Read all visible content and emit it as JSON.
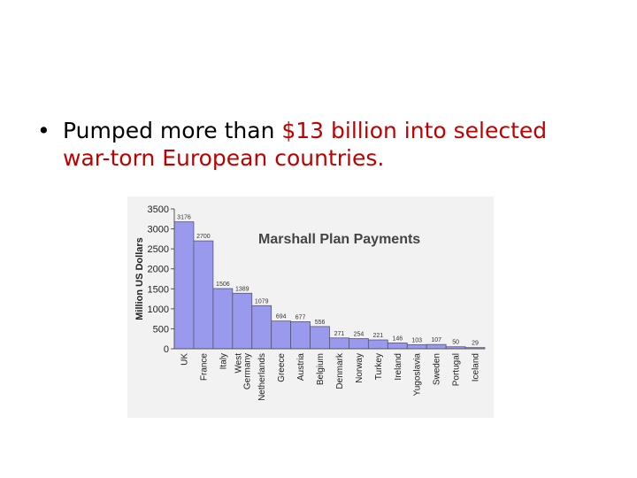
{
  "slide": {
    "bullet": "•",
    "text_before": "Pumped more than ",
    "text_highlight": "$13 billion into selected",
    "text_after": "war-torn European countries.",
    "highlight_color": "#c00000"
  },
  "chart_data": {
    "type": "bar",
    "title": "Marshall Plan Payments",
    "xlabel": "",
    "ylabel": "Million US Dollars",
    "ylim": [
      0,
      3500
    ],
    "yticks": [
      0,
      500,
      1000,
      1500,
      2000,
      2500,
      3000,
      3500
    ],
    "grid": false,
    "bar_color": "#9999ee",
    "categories": [
      "UK",
      "France",
      "Italy",
      "West Germany",
      "Netherlands",
      "Greece",
      "Austria",
      "Belgium",
      "Denmark",
      "Norway",
      "Turkey",
      "Ireland",
      "Yugoslavia",
      "Sweden",
      "Portugal",
      "Iceland"
    ],
    "tick_labels": [
      [
        "UK"
      ],
      [
        "France"
      ],
      [
        "Italy"
      ],
      [
        "West",
        "Germany"
      ],
      [
        "Netherlands"
      ],
      [
        "Greece"
      ],
      [
        "Austria"
      ],
      [
        "Belgium"
      ],
      [
        "Denmark"
      ],
      [
        "Norway"
      ],
      [
        "Turkey"
      ],
      [
        "Ireland"
      ],
      [
        "Yugoslavia"
      ],
      [
        "Sweden"
      ],
      [
        "Portugal"
      ],
      [
        "Iceland"
      ]
    ],
    "values": [
      3176,
      2700,
      1506,
      1389,
      1079,
      694,
      677,
      556,
      271,
      254,
      221,
      146,
      103,
      107,
      50,
      29
    ]
  }
}
